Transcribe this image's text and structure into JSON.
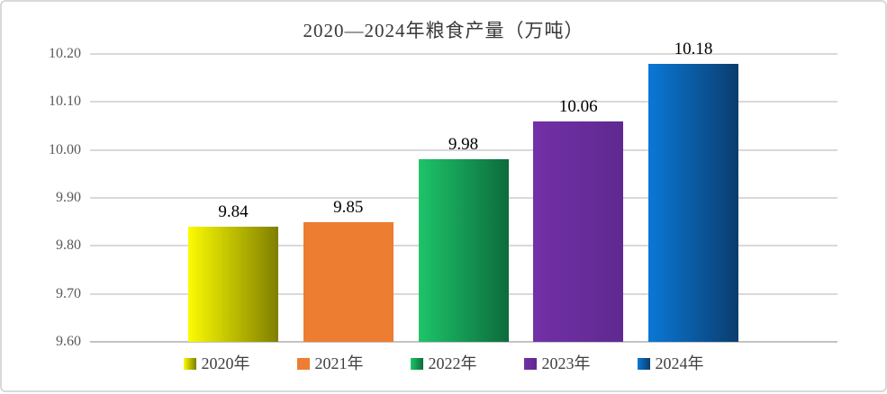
{
  "chart_data": {
    "type": "bar",
    "title": "2020—2024年粮食产量（万吨）",
    "categories": [
      "2020年",
      "2021年",
      "2022年",
      "2023年",
      "2024年"
    ],
    "values": [
      9.84,
      9.85,
      9.98,
      10.06,
      10.18
    ],
    "data_labels": [
      "9.84",
      "9.85",
      "9.98",
      "10.06",
      "10.18"
    ],
    "xlabel": "",
    "ylabel": "",
    "ylim": [
      9.6,
      10.2
    ],
    "ytick_step": 0.1,
    "yticks": [
      "10.20",
      "10.10",
      "10.00",
      "9.90",
      "9.80",
      "9.70",
      "9.60"
    ],
    "grid": true,
    "legend_position": "bottom",
    "series_colors": [
      {
        "label": "2020年",
        "gradient_start": "#FBFB03",
        "gradient_end": "#7F7F00"
      },
      {
        "label": "2021年",
        "gradient_start": "#ED7D31",
        "gradient_end": "#ED7D31"
      },
      {
        "label": "2022年",
        "gradient_start": "#1DC46A",
        "gradient_end": "#0D6B3C"
      },
      {
        "label": "2023年",
        "gradient_start": "#7230A6",
        "gradient_end": "#5F2990"
      },
      {
        "label": "2024年",
        "gradient_start": "#0A78D6",
        "gradient_end": "#0A3D6E"
      }
    ]
  },
  "colors": {
    "background": "#FFFFFF",
    "frame_border": "#D9D9D9",
    "gridline": "#D9D9D9",
    "axis_line": "#C3C3C3",
    "axis_text": "#595959",
    "title_text": "#383838",
    "data_label_text": "#000000",
    "legend_text": "#404040"
  }
}
